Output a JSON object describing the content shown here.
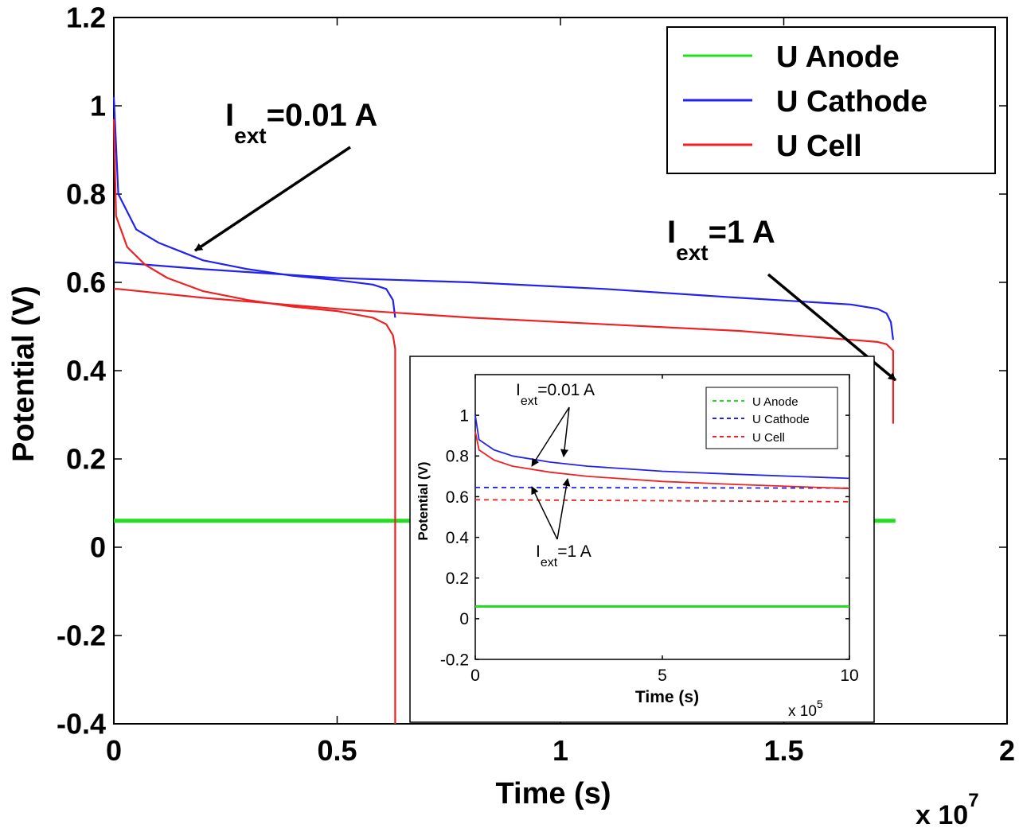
{
  "chart_data": [
    {
      "type": "line",
      "xlabel": "Time (s)",
      "ylabel": "Potential (V)",
      "xlim": [
        0,
        20000000
      ],
      "ylim": [
        -0.4,
        1.2
      ],
      "x_exponent_label": "x 10",
      "x_exponent_power": "7",
      "xticks": [
        {
          "value": 0,
          "label": "0"
        },
        {
          "value": 5000000,
          "label": "0.5"
        },
        {
          "value": 10000000,
          "label": "1"
        },
        {
          "value": 15000000,
          "label": "1.5"
        },
        {
          "value": 20000000,
          "label": "2"
        }
      ],
      "yticks": [
        {
          "value": -0.4,
          "label": "-0.4"
        },
        {
          "value": -0.2,
          "label": "-0.2"
        },
        {
          "value": 0,
          "label": "0"
        },
        {
          "value": 0.2,
          "label": "0.2"
        },
        {
          "value": 0.4,
          "label": "0.4"
        },
        {
          "value": 0.6,
          "label": "0.6"
        },
        {
          "value": 0.8,
          "label": "0.8"
        },
        {
          "value": 1,
          "label": "1"
        },
        {
          "value": 1.2,
          "label": "1.2"
        }
      ],
      "legend_position": "top-right",
      "legend": [
        {
          "label": "U Anode",
          "color": "#22dd22"
        },
        {
          "label": "U Cathode",
          "color": "#2222ee"
        },
        {
          "label": "U Cell",
          "color": "#ee2222"
        }
      ],
      "series": [
        {
          "group": "U Anode",
          "color": "#22dd22",
          "width": 5,
          "x": [
            0,
            6300000,
            17500000
          ],
          "y": [
            0.06,
            0.06,
            0.06
          ]
        },
        {
          "group": "U Cathode",
          "color": "#2222ee",
          "x": [
            0,
            100000,
            500000,
            1000000,
            1500000,
            2000000,
            3000000,
            4000000,
            5000000,
            5800000,
            6100000,
            6250000,
            6300000
          ],
          "y": [
            1.02,
            0.8,
            0.72,
            0.69,
            0.67,
            0.65,
            0.63,
            0.615,
            0.605,
            0.595,
            0.585,
            0.56,
            0.52
          ]
        },
        {
          "group": "U Cathode",
          "color": "#2222ee",
          "x": [
            0,
            100000,
            2000000,
            5000000,
            8000000,
            11000000,
            14000000,
            16500000,
            17100000,
            17300000,
            17400000,
            17450000
          ],
          "y": [
            0.645,
            0.645,
            0.63,
            0.61,
            0.6,
            0.585,
            0.565,
            0.55,
            0.54,
            0.53,
            0.51,
            0.47
          ]
        },
        {
          "group": "U Cell",
          "color": "#ee2222",
          "x": [
            0,
            50000,
            300000,
            700000,
            1200000,
            2000000,
            3000000,
            4000000,
            5000000,
            5800000,
            6100000,
            6250000,
            6300000,
            6300000
          ],
          "y": [
            0.97,
            0.75,
            0.68,
            0.64,
            0.61,
            0.58,
            0.56,
            0.545,
            0.535,
            0.52,
            0.505,
            0.48,
            0.45,
            -0.4
          ]
        },
        {
          "group": "U Cell",
          "color": "#ee2222",
          "x": [
            0,
            100000,
            2000000,
            5000000,
            8000000,
            11000000,
            14000000,
            16500000,
            17100000,
            17300000,
            17450000,
            17450000
          ],
          "y": [
            0.585,
            0.585,
            0.565,
            0.54,
            0.52,
            0.505,
            0.49,
            0.47,
            0.465,
            0.46,
            0.445,
            0.28
          ]
        }
      ],
      "annotations": [
        {
          "main": "I",
          "sub": "ext",
          "rest": "=0.01 A",
          "points_to": [
            1800000,
            0.665
          ]
        },
        {
          "main": "I",
          "sub": "ext",
          "rest": "=1 A",
          "points_to": [
            17400000,
            0.38
          ]
        }
      ]
    },
    {
      "type": "line",
      "xlabel": "Time (s)",
      "ylabel": "Potential (V)",
      "xlim": [
        0,
        1000000
      ],
      "ylim": [
        -0.2,
        1.2
      ],
      "x_exponent_label": "x 10",
      "x_exponent_power": "5",
      "xticks": [
        {
          "value": 0,
          "label": "0"
        },
        {
          "value": 500000,
          "label": "5"
        },
        {
          "value": 1000000,
          "label": "10"
        }
      ],
      "yticks": [
        {
          "value": -0.2,
          "label": "-0.2"
        },
        {
          "value": 0,
          "label": "0"
        },
        {
          "value": 0.2,
          "label": "0.2"
        },
        {
          "value": 0.4,
          "label": "0.4"
        },
        {
          "value": 0.6,
          "label": "0.6"
        },
        {
          "value": 0.8,
          "label": "0.8"
        },
        {
          "value": 1,
          "label": "1"
        }
      ],
      "legend_position": "top-right",
      "legend": [
        {
          "label": "U Anode",
          "color": "#22dd22"
        },
        {
          "label": "U Cathode",
          "color": "#2222ee"
        },
        {
          "label": "U Cell",
          "color": "#ee2222"
        }
      ],
      "series": [
        {
          "group": "U Anode",
          "color": "#22dd22",
          "width": 3,
          "x": [
            0,
            1000000
          ],
          "y": [
            0.06,
            0.06
          ]
        },
        {
          "group": "U Cathode",
          "color": "#2222ee",
          "x": [
            0,
            10000,
            50000,
            100000,
            200000,
            300000,
            500000,
            700000,
            1000000
          ],
          "y": [
            1.0,
            0.88,
            0.83,
            0.8,
            0.77,
            0.75,
            0.725,
            0.71,
            0.69
          ]
        },
        {
          "group": "U Cathode",
          "color": "#2222ee",
          "dash": "6,5",
          "x": [
            0,
            1000000
          ],
          "y": [
            0.645,
            0.642
          ]
        },
        {
          "group": "U Cell",
          "color": "#ee2222",
          "x": [
            0,
            10000,
            50000,
            100000,
            200000,
            300000,
            500000,
            700000,
            1000000
          ],
          "y": [
            0.92,
            0.83,
            0.78,
            0.75,
            0.72,
            0.7,
            0.675,
            0.66,
            0.64
          ]
        },
        {
          "group": "U Cell",
          "color": "#ee2222",
          "dash": "6,5",
          "x": [
            0,
            1000000
          ],
          "y": [
            0.585,
            0.575
          ]
        }
      ],
      "annotations": [
        {
          "main": "I",
          "sub": "ext",
          "rest": "=0.01 A",
          "points_to": [
            [
              150000,
              0.73
            ],
            [
              240000,
              0.72
            ]
          ]
        },
        {
          "main": "I",
          "sub": "ext",
          "rest": "=1 A",
          "points_to": [
            [
              150000,
              0.6
            ],
            [
              240000,
              0.62
            ]
          ]
        }
      ]
    }
  ]
}
